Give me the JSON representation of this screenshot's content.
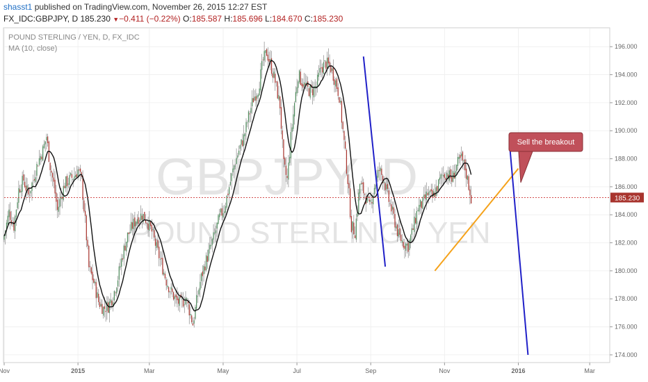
{
  "header": {
    "user": "shasst1",
    "published": "published on TradingView.com, November 26, 2015 12:27 EST",
    "symbol": "FX_IDC:GBPJPY, D",
    "last": "185.230",
    "change": "−0.411 (−0.22%)",
    "o_label": "O:",
    "o_value": "185.587",
    "h_label": "H:",
    "h_value": "185.696",
    "l_label": "L:",
    "l_value": "184.670",
    "c_label": "C:",
    "c_value": "185.230",
    "down_glyph": "▼"
  },
  "legend": {
    "title": "POUND STERLING / YEN, D, FX_IDC",
    "indicator": "MA (10, close)"
  },
  "watermark": {
    "ticker": "GBPJPY, D",
    "name": "POUND STERLING / YEN"
  },
  "callout": {
    "text": "Sell the breakout"
  },
  "colors": {
    "up": "#4e8a5c",
    "down": "#a8342e",
    "ma": "#111111",
    "trend_orange": "#f5a21a",
    "trend_blue": "#2020c8",
    "price_line": "#cc3333",
    "callout_fill": "#c0505a"
  },
  "chart_data": {
    "type": "candlestick",
    "symbol": "FX_IDC:GBPJPY",
    "interval": "D",
    "ylim": [
      173.5,
      197.3
    ],
    "y_ticks": [
      "174.000",
      "176.000",
      "178.000",
      "180.000",
      "182.000",
      "184.000",
      "186.000",
      "188.000",
      "190.000",
      "192.000",
      "194.000",
      "196.000"
    ],
    "x_ticks": [
      "Nov",
      "2015",
      "Mar",
      "May",
      "Jul",
      "Sep",
      "Nov",
      "2016",
      "Mar"
    ],
    "x_tick_days": [
      0,
      61,
      120,
      181,
      242,
      303,
      364,
      425,
      484
    ],
    "last_price": "185.230",
    "last_price_value": 185.23,
    "x_end_day": 500,
    "anchors": [
      [
        0,
        182.5
      ],
      [
        4,
        184.2
      ],
      [
        8,
        183.2
      ],
      [
        12,
        185.8
      ],
      [
        16,
        186.5
      ],
      [
        20,
        185.4
      ],
      [
        24,
        186.5
      ],
      [
        28,
        187.8
      ],
      [
        32,
        188.6
      ],
      [
        35,
        189.6
      ],
      [
        38,
        187.5
      ],
      [
        41,
        186.2
      ],
      [
        44,
        184.3
      ],
      [
        47,
        185.3
      ],
      [
        50,
        186.2
      ],
      [
        54,
        186.5
      ],
      [
        58,
        186.8
      ],
      [
        61,
        187.2
      ],
      [
        64,
        186.4
      ],
      [
        67,
        183.5
      ],
      [
        70,
        180.2
      ],
      [
        74,
        179.2
      ],
      [
        78,
        177.8
      ],
      [
        82,
        177.3
      ],
      [
        86,
        177.5
      ],
      [
        90,
        178.2
      ],
      [
        94,
        179.5
      ],
      [
        98,
        181.2
      ],
      [
        102,
        182.5
      ],
      [
        106,
        183.2
      ],
      [
        110,
        183.8
      ],
      [
        114,
        184.0
      ],
      [
        118,
        183.6
      ],
      [
        122,
        182.8
      ],
      [
        126,
        181.6
      ],
      [
        130,
        180.5
      ],
      [
        134,
        179.3
      ],
      [
        138,
        178.5
      ],
      [
        142,
        177.9
      ],
      [
        146,
        177.6
      ],
      [
        150,
        178.1
      ],
      [
        153,
        177.2
      ],
      [
        156,
        176.2
      ],
      [
        159,
        177.8
      ],
      [
        162,
        179.2
      ],
      [
        166,
        180.5
      ],
      [
        170,
        181.5
      ],
      [
        174,
        182.6
      ],
      [
        178,
        183.8
      ],
      [
        182,
        184.5
      ],
      [
        186,
        186.0
      ],
      [
        190,
        187.5
      ],
      [
        194,
        188.6
      ],
      [
        198,
        189.5
      ],
      [
        202,
        191.0
      ],
      [
        206,
        192.3
      ],
      [
        210,
        193.0
      ],
      [
        214,
        195.0
      ],
      [
        217,
        195.6
      ],
      [
        220,
        194.8
      ],
      [
        224,
        193.5
      ],
      [
        228,
        191.8
      ],
      [
        231,
        187.5
      ],
      [
        234,
        186.5
      ],
      [
        237,
        189.5
      ],
      [
        240,
        192.0
      ],
      [
        243,
        194.0
      ],
      [
        246,
        193.5
      ],
      [
        250,
        193.0
      ],
      [
        254,
        192.8
      ],
      [
        258,
        193.2
      ],
      [
        262,
        194.5
      ],
      [
        266,
        194.8
      ],
      [
        270,
        194.5
      ],
      [
        274,
        193.5
      ],
      [
        277,
        192.5
      ],
      [
        280,
        190.0
      ],
      [
        284,
        186.5
      ],
      [
        287,
        183.2
      ],
      [
        290,
        182.8
      ],
      [
        294,
        186.2
      ],
      [
        298,
        185.5
      ],
      [
        302,
        184.5
      ],
      [
        306,
        186.0
      ],
      [
        310,
        187.2
      ],
      [
        314,
        186.5
      ],
      [
        318,
        185.0
      ],
      [
        322,
        183.8
      ],
      [
        326,
        182.5
      ],
      [
        330,
        182.0
      ],
      [
        334,
        181.8
      ],
      [
        338,
        183.0
      ],
      [
        342,
        184.5
      ],
      [
        346,
        184.8
      ],
      [
        350,
        185.5
      ],
      [
        354,
        185.2
      ],
      [
        358,
        186.0
      ],
      [
        362,
        186.8
      ],
      [
        366,
        187.0
      ],
      [
        370,
        186.5
      ],
      [
        374,
        187.5
      ],
      [
        378,
        188.0
      ],
      [
        381,
        187.3
      ],
      [
        384,
        186.1
      ],
      [
        386,
        185.2
      ]
    ],
    "series": [
      {
        "name": "MA (10, close)",
        "type": "line",
        "length": 10,
        "source": "close"
      }
    ],
    "annotations": [
      {
        "type": "trendline",
        "color": "orange",
        "points": [
          [
            356,
            180.0
          ],
          [
            425,
            187.3
          ]
        ]
      },
      {
        "type": "trendline",
        "color": "blue",
        "points": [
          [
            297,
            195.3
          ],
          [
            315,
            180.3
          ]
        ]
      },
      {
        "type": "trendline",
        "color": "blue",
        "points": [
          [
            418,
            188.8
          ],
          [
            433,
            174.0
          ]
        ]
      },
      {
        "type": "callout",
        "text": "Sell the breakout",
        "target": [
          427,
          186.3
        ]
      }
    ],
    "grid": true,
    "price_line": 185.23
  }
}
